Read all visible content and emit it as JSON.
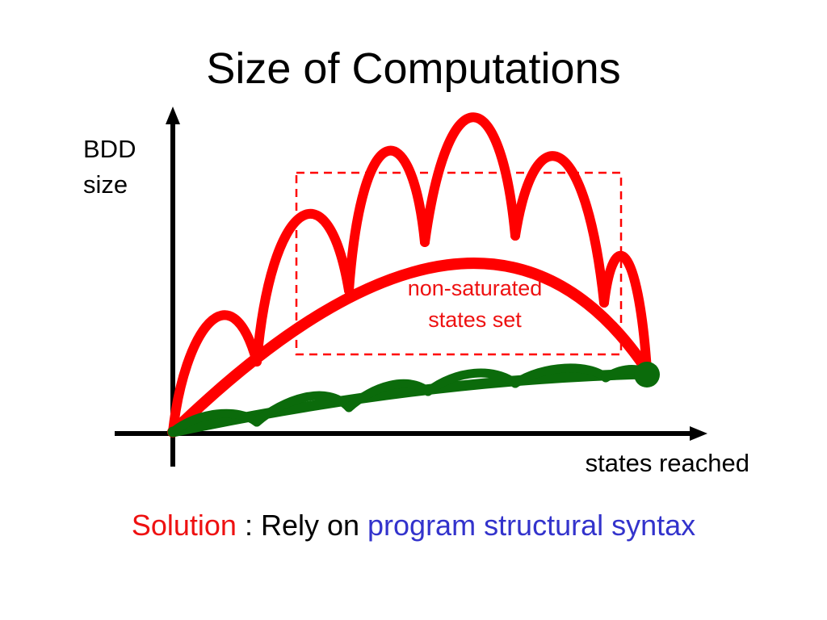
{
  "title": "Size of Computations",
  "y_axis_label": [
    "BDD",
    "size"
  ],
  "x_axis_label": "states reached",
  "region_label": [
    "non-saturated",
    "states set"
  ],
  "footer": {
    "highlight": "Solution",
    "middle": " : Rely on ",
    "emphasis": "program structural syntax"
  },
  "colors": {
    "red": "#ff0000",
    "green": "#0b6b0b",
    "blue": "#3333cc",
    "axis": "#000000"
  }
}
